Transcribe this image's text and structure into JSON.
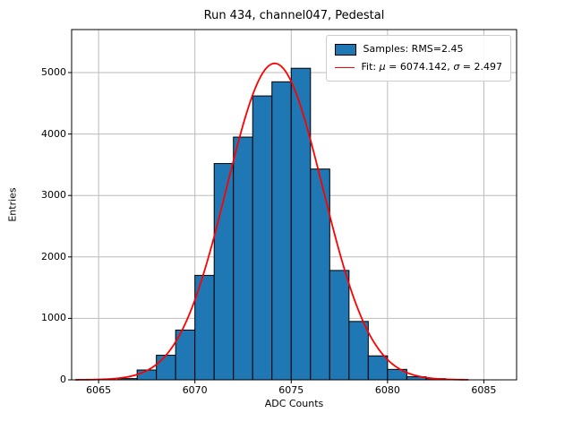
{
  "figure": {
    "title": "Run 434, channel047, Pedestal",
    "xlabel": "ADC Counts",
    "ylabel": "Entries"
  },
  "legend": {
    "samples_label": "Samples: RMS=2.45",
    "fit_prefix": "Fit: ",
    "fit_mu_symbol": "μ",
    "fit_mu_value": " = 6074.142, ",
    "fit_sigma_symbol": "σ",
    "fit_sigma_value": " = 2.497"
  },
  "colors": {
    "bar_fill": "#1f77b4",
    "bar_edge": "#000000",
    "fit_line": "#ff0000",
    "grid": "#bbbbbb",
    "axis": "#000000"
  },
  "chart_data": {
    "type": "bar",
    "subtype": "histogram-with-gaussian-fit",
    "title": "Run 434, channel047, Pedestal",
    "xlabel": "ADC Counts",
    "ylabel": "Entries",
    "xlim": [
      6063.6,
      6086.7
    ],
    "ylim": [
      0,
      5700
    ],
    "xticks": [
      6065,
      6070,
      6075,
      6080,
      6085
    ],
    "yticks": [
      0,
      1000,
      2000,
      3000,
      4000,
      5000
    ],
    "grid": true,
    "legend_position": "upper right",
    "legend_entries": [
      "Samples: RMS=2.45",
      "Fit: μ = 6074.142, σ = 2.497"
    ],
    "histogram": {
      "bin_width": 1,
      "bin_left_edges": [
        6066,
        6067,
        6068,
        6069,
        6070,
        6071,
        6072,
        6073,
        6074,
        6075,
        6076,
        6077,
        6078,
        6079,
        6080,
        6081,
        6082
      ],
      "counts": [
        20,
        160,
        400,
        810,
        1700,
        3520,
        3950,
        4620,
        4850,
        5070,
        3430,
        1780,
        950,
        390,
        170,
        50,
        20
      ],
      "rms": 2.45
    },
    "fit": {
      "type": "gaussian",
      "mu": 6074.142,
      "sigma": 2.497,
      "amplitude": 5150,
      "x_start": 6063.8,
      "x_end": 6084.3
    }
  }
}
